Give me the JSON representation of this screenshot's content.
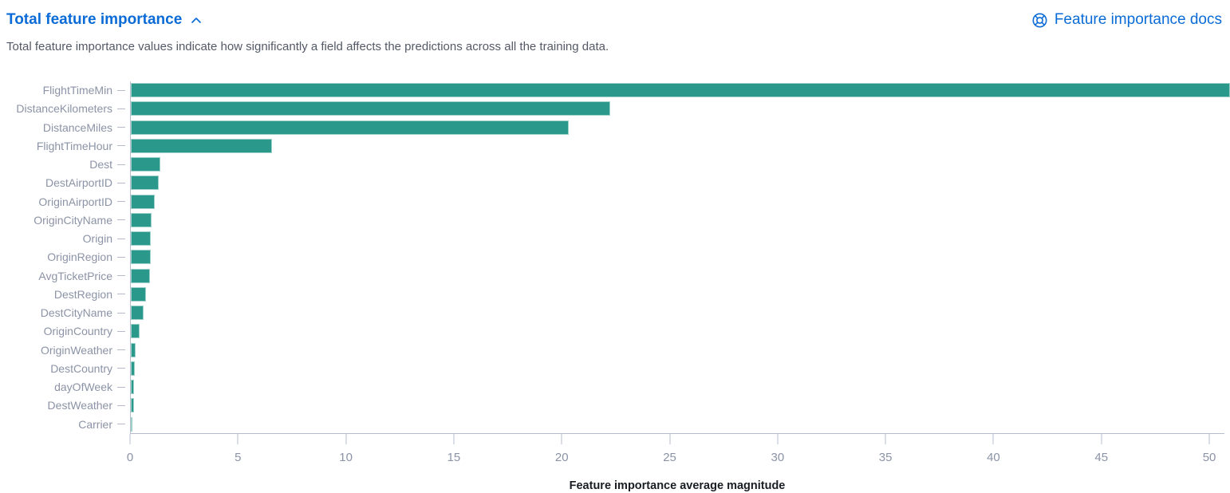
{
  "header": {
    "title": "Total feature importance",
    "docs_link_label": "Feature importance docs"
  },
  "description": "Total feature importance values indicate how significantly a field affects the predictions across all the training data.",
  "colors": {
    "accent_blue": "#0b6bd6",
    "bar_teal": "#2a998c",
    "axis_line": "#b6bccd",
    "axis_label_text": "#8b93a6",
    "description_text": "#535966",
    "axis_title_text": "#1a1d24"
  },
  "icons": {
    "collapse": "chevron-up-icon",
    "docs": "lifebuoy-icon"
  },
  "chart_data": {
    "type": "bar",
    "orientation": "horizontal",
    "categories": [
      "FlightTimeMin",
      "DistanceKilometers",
      "DistanceMiles",
      "FlightTimeHour",
      "Dest",
      "DestAirportID",
      "OriginAirportID",
      "OriginCityName",
      "Origin",
      "OriginRegion",
      "AvgTicketPrice",
      "DestRegion",
      "DestCityName",
      "OriginCountry",
      "OriginWeather",
      "DestCountry",
      "dayOfWeek",
      "DestWeather",
      "Carrier"
    ],
    "values": [
      50.7,
      22.1,
      20.2,
      6.5,
      1.35,
      1.3,
      1.1,
      0.97,
      0.94,
      0.91,
      0.88,
      0.71,
      0.59,
      0.42,
      0.21,
      0.17,
      0.16,
      0.14,
      0.05
    ],
    "title": "",
    "xlabel": "Feature importance average magnitude",
    "ylabel": "",
    "xlim": [
      0,
      50.7
    ],
    "x_ticks": [
      0,
      5,
      10,
      15,
      20,
      25,
      30,
      35,
      40,
      45,
      50
    ],
    "grid": false,
    "legend": false
  }
}
